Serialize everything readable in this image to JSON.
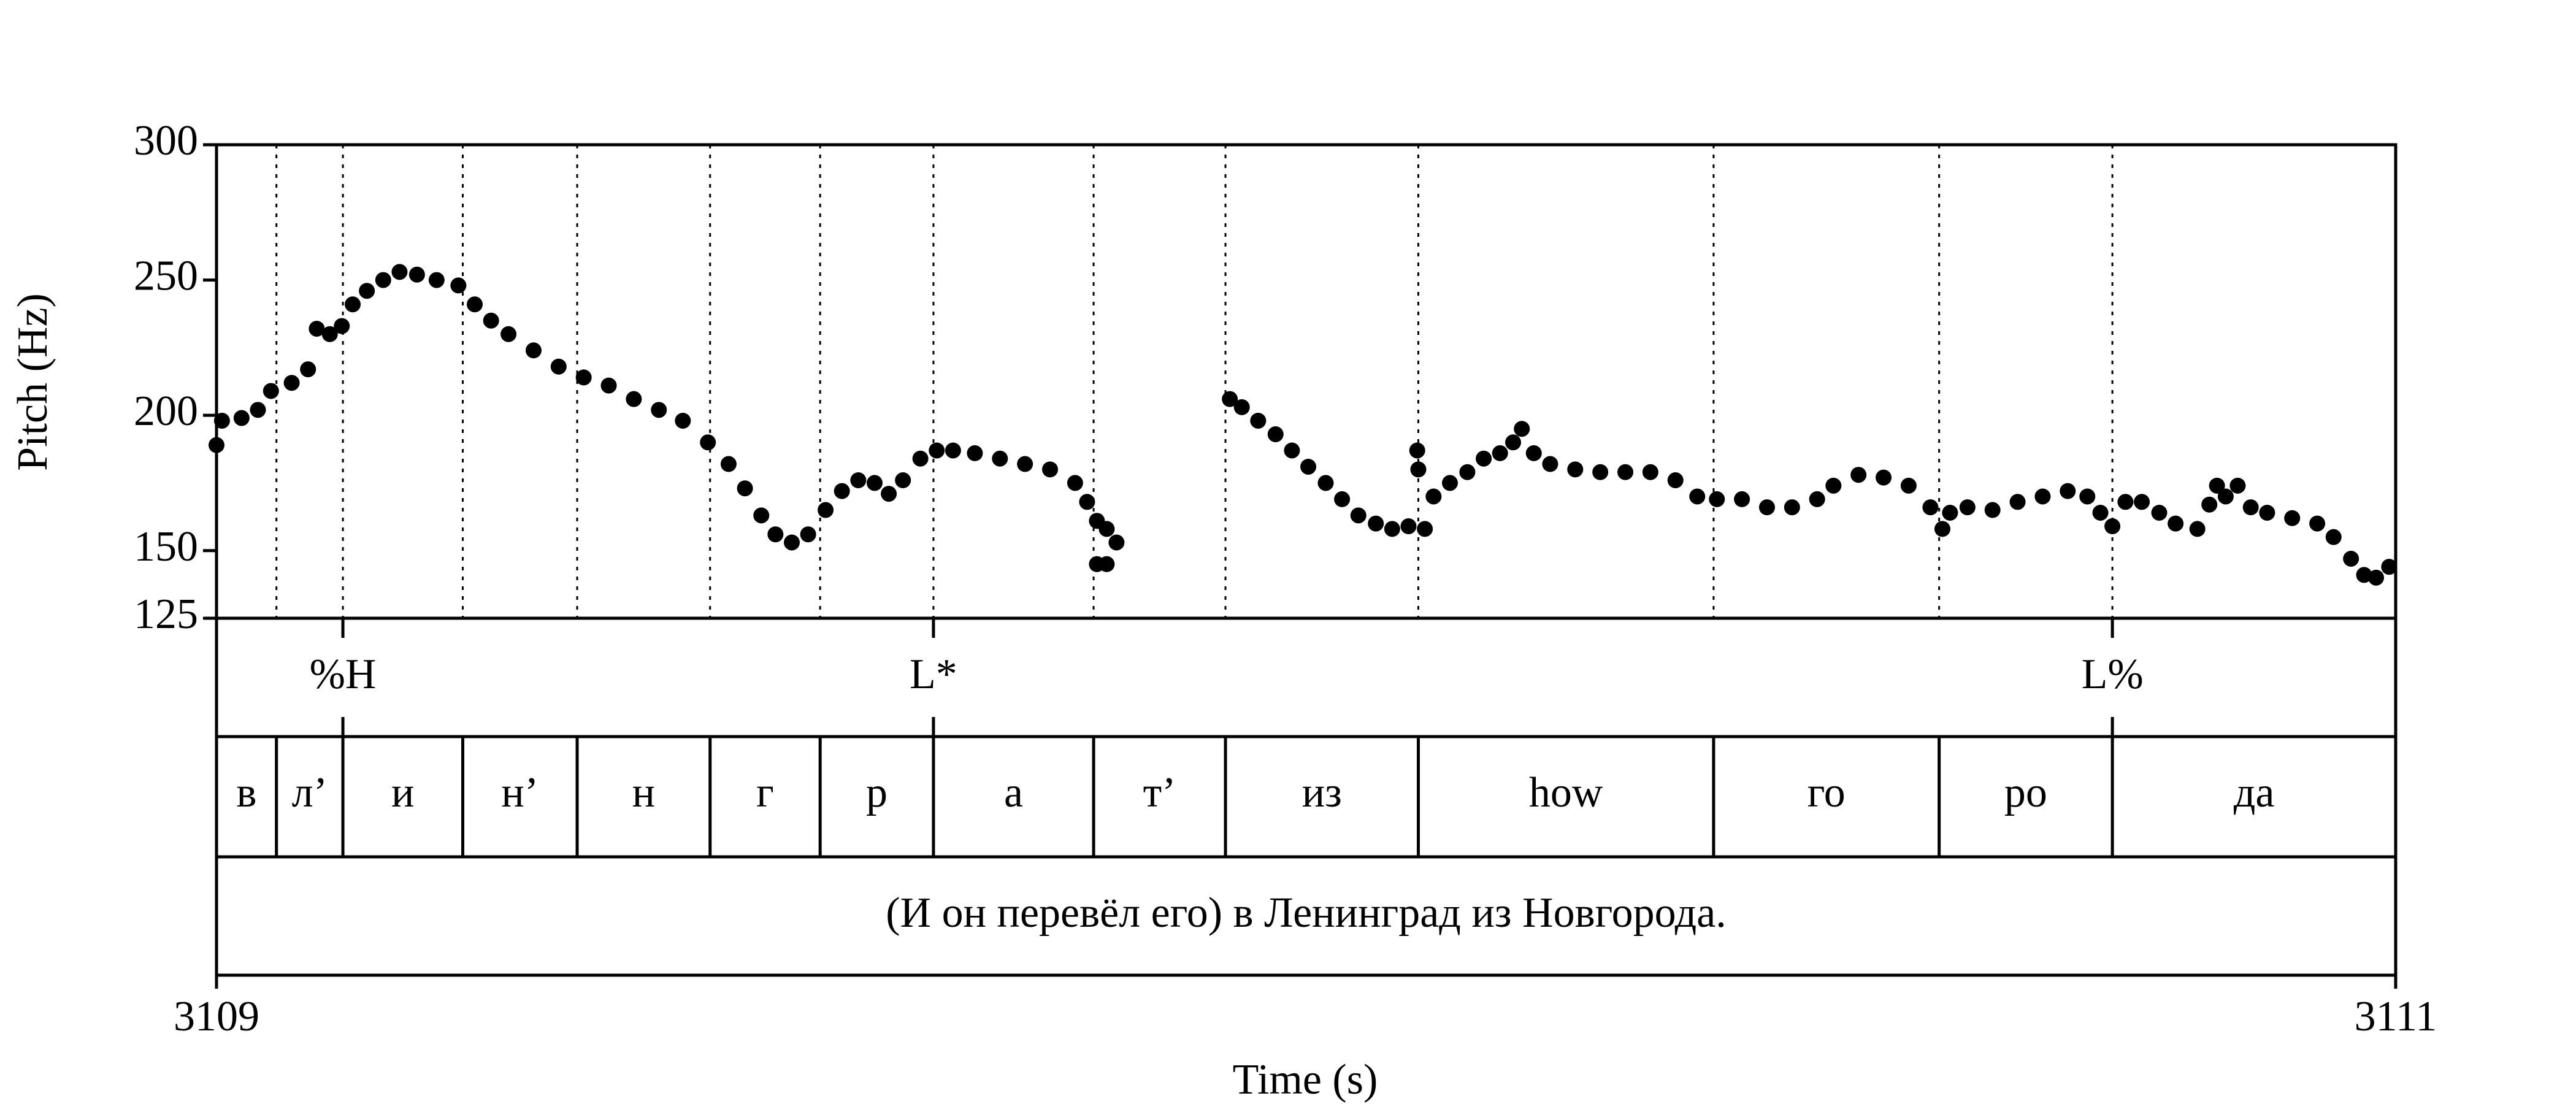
{
  "chart_data": {
    "type": "scatter",
    "x_label": "Time (s)",
    "y_label": "Pitch (Hz)",
    "xlim": [
      3109,
      3111
    ],
    "xticks": [
      3109,
      3111
    ],
    "ylim": [
      125,
      300
    ],
    "yticks": [
      125,
      150,
      200,
      250,
      300
    ],
    "color": "#000000",
    "x": [
      3109.0,
      3109.005,
      3109.023,
      3109.038,
      3109.05,
      3109.069,
      3109.084,
      3109.092,
      3109.104,
      3109.115,
      3109.125,
      3109.138,
      3109.153,
      3109.168,
      3109.184,
      3109.202,
      3109.222,
      3109.237,
      3109.252,
      3109.268,
      3109.291,
      3109.314,
      3109.337,
      3109.36,
      3109.383,
      3109.406,
      3109.428,
      3109.451,
      3109.47,
      3109.485,
      3109.5,
      3109.513,
      3109.528,
      3109.543,
      3109.559,
      3109.574,
      3109.589,
      3109.604,
      3109.617,
      3109.63,
      3109.646,
      3109.661,
      3109.676,
      3109.696,
      3109.719,
      3109.742,
      3109.765,
      3109.788,
      3109.799,
      3109.808,
      3109.817,
      3109.826,
      3109.808,
      3109.817,
      3109.93,
      3109.941,
      3109.956,
      3109.972,
      3109.987,
      3110.002,
      3110.018,
      3110.033,
      3110.048,
      3110.064,
      3110.079,
      3110.094,
      3110.102,
      3110.103,
      3110.109,
      3110.117,
      3110.132,
      3110.148,
      3110.163,
      3110.178,
      3110.19,
      3110.198,
      3110.209,
      3110.224,
      3110.247,
      3110.27,
      3110.293,
      3110.316,
      3110.339,
      3110.359,
      3110.377,
      3110.4,
      3110.423,
      3110.446,
      3110.469,
      3110.484,
      3110.507,
      3110.53,
      3110.553,
      3110.573,
      3110.584,
      3110.591,
      3110.607,
      3110.63,
      3110.653,
      3110.676,
      3110.699,
      3110.717,
      3110.729,
      3110.74,
      3110.752,
      3110.767,
      3110.783,
      3110.798,
      3110.818,
      3110.829,
      3110.836,
      3110.844,
      3110.855,
      3110.867,
      3110.882,
      3110.905,
      3110.928,
      3110.943,
      3110.959,
      3110.971,
      3110.982,
      3110.994
    ],
    "values": [
      189,
      198,
      199,
      202,
      209,
      212,
      217,
      232,
      230,
      233,
      241,
      246,
      250,
      253,
      252,
      250,
      248,
      241,
      235,
      230,
      224,
      218,
      214,
      211,
      206,
      202,
      198,
      190,
      182,
      173,
      163,
      156,
      153,
      156,
      165,
      172,
      176,
      175,
      171,
      176,
      184,
      187,
      187,
      186,
      184,
      182,
      180,
      175,
      168,
      161,
      158,
      153,
      145,
      145,
      206,
      203,
      198,
      193,
      187,
      181,
      175,
      169,
      163,
      160,
      158,
      159,
      187,
      180,
      158,
      170,
      175,
      179,
      184,
      186,
      190,
      195,
      186,
      182,
      180,
      179,
      179,
      179,
      176,
      170,
      169,
      169,
      166,
      166,
      169,
      174,
      178,
      177,
      174,
      166,
      158,
      164,
      166,
      165,
      168,
      170,
      172,
      170,
      164,
      159,
      168,
      168,
      164,
      160,
      158,
      167,
      174,
      170,
      174,
      166,
      164,
      162,
      160,
      155,
      147,
      141,
      140,
      144
    ],
    "tiers": [
      {
        "points": [
          3109.116,
          3109.658,
          3110.74
        ],
        "labels": [
          "%H",
          "L*",
          "L%"
        ]
      },
      {
        "boundaries": [
          3109.055,
          3109.116,
          3109.226,
          3109.331,
          3109.453,
          3109.554,
          3109.658,
          3109.805,
          3109.926,
          3110.103,
          3110.374,
          3110.581,
          3110.74
        ],
        "labels": [
          "в",
          "л’",
          "и",
          "н’",
          "н",
          "г",
          "р",
          "а",
          "т’",
          "из",
          "how",
          "го",
          "ро",
          "да"
        ]
      },
      {
        "labels": [
          "(И он перевёл его) в Ленинград из Новгорода."
        ]
      }
    ]
  }
}
